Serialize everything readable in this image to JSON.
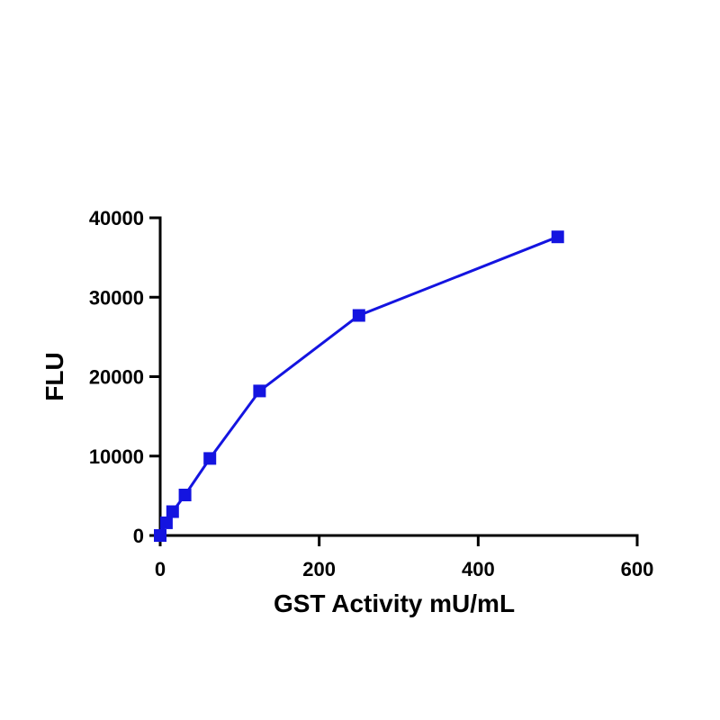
{
  "chart_data": {
    "type": "line",
    "title": "",
    "xlabel": "GST Activity mU/mL",
    "ylabel": "FLU",
    "xlim": [
      0,
      600
    ],
    "ylim": [
      0,
      40000
    ],
    "x_ticks": [
      "0",
      "200",
      "400",
      "600"
    ],
    "y_ticks": [
      "0",
      "10000",
      "20000",
      "30000",
      "40000"
    ],
    "grid": false,
    "legend": "none",
    "series": [
      {
        "color": "#1414e0",
        "marker": "square",
        "x": [
          0,
          7.8,
          15.6,
          31.25,
          62.5,
          125,
          250,
          500
        ],
        "y": [
          0,
          1600,
          3000,
          5100,
          9700,
          18200,
          27700,
          37600
        ]
      }
    ]
  }
}
